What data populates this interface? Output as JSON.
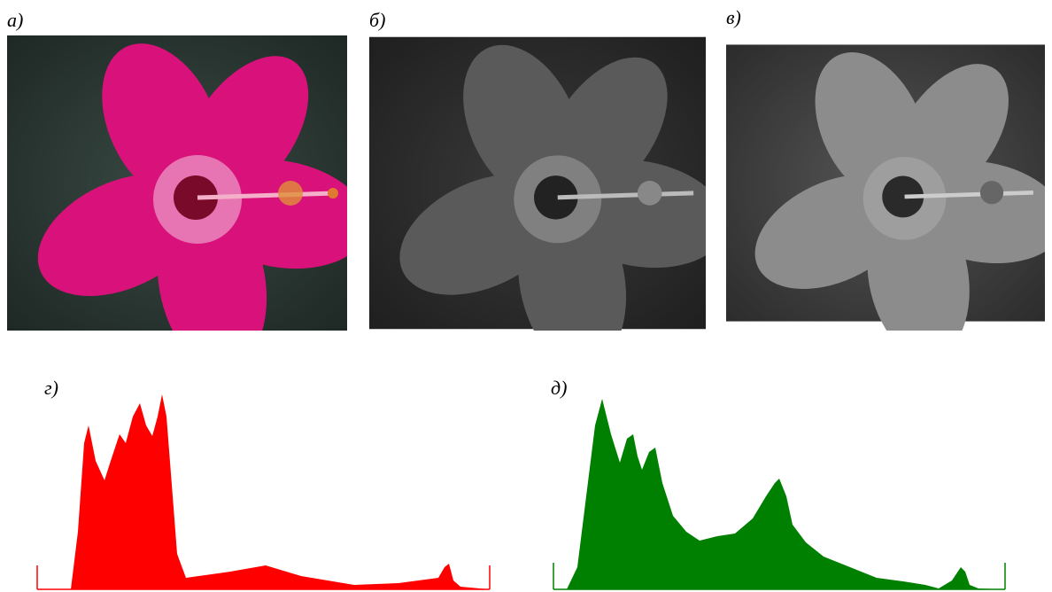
{
  "figure": {
    "panels": [
      {
        "label": "а)"
      },
      {
        "label": "б)"
      },
      {
        "label": "в)"
      },
      {
        "label": "г)"
      },
      {
        "label": "д)"
      }
    ]
  }
}
